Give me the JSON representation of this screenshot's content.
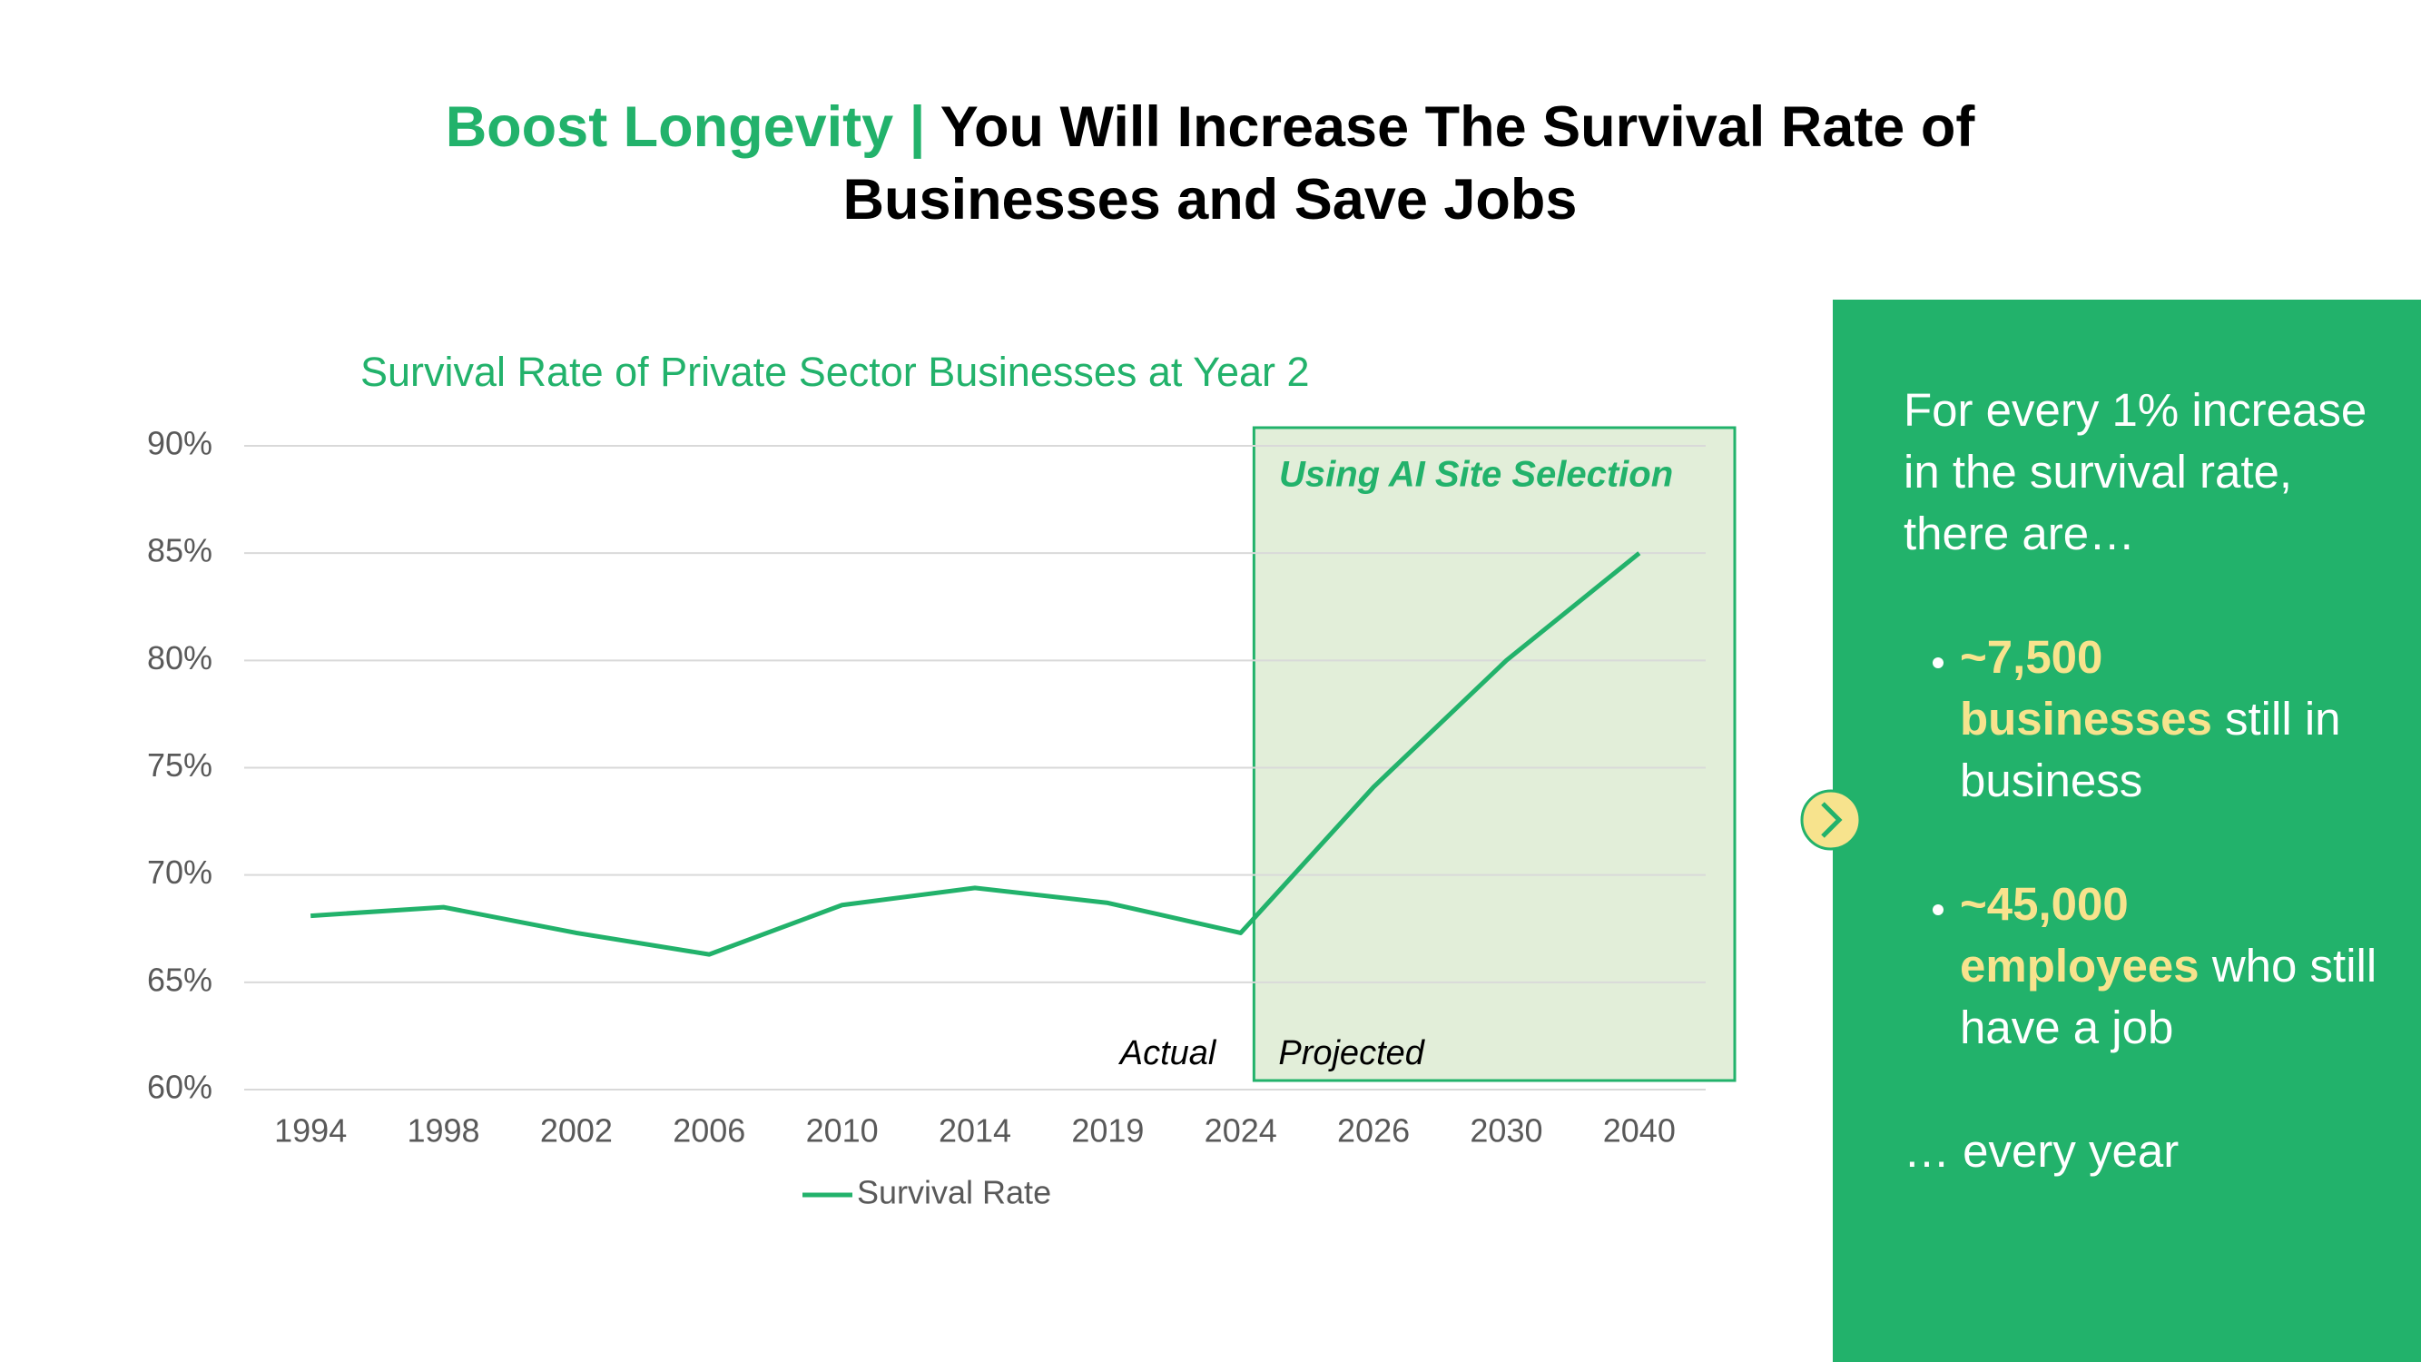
{
  "header": {
    "title_highlight": "Boost Longevity |",
    "title_rest": "You Will Increase The Survival Rate of Businesses and Save Jobs"
  },
  "chart_data": {
    "type": "line",
    "title": "Survival Rate of Private Sector Businesses at Year 2",
    "categories": [
      "1994",
      "1998",
      "2002",
      "2006",
      "2010",
      "2014",
      "2019",
      "2024",
      "2026",
      "2030",
      "2040"
    ],
    "series": [
      {
        "name": "Survival Rate",
        "color": "#22b26b",
        "values": [
          68.1,
          68.5,
          67.3,
          66.3,
          68.6,
          69.4,
          68.7,
          67.3,
          74.1,
          80,
          85
        ]
      }
    ],
    "ylim": [
      60,
      90
    ],
    "yticks": [
      {
        "value": 60,
        "label": "60%"
      },
      {
        "value": 65,
        "label": "65%"
      },
      {
        "value": 70,
        "label": "70%"
      },
      {
        "value": 75,
        "label": "75%"
      },
      {
        "value": 80,
        "label": "80%"
      },
      {
        "value": 85,
        "label": "85%"
      },
      {
        "value": 90,
        "label": "90%"
      }
    ],
    "grid": true,
    "legend": "bottom",
    "annotations": {
      "region": "Using AI Site Selection",
      "before": "Actual",
      "after": "Projected"
    }
  },
  "panel": {
    "intro": "For every 1% increase in the survival rate, there are…",
    "bullets": [
      {
        "number": "~7,500",
        "noun": "businesses",
        "rest": "still in business"
      },
      {
        "number": "~45,000",
        "noun": "employees",
        "rest": "who still have a job"
      }
    ],
    "outro": "… every year"
  }
}
